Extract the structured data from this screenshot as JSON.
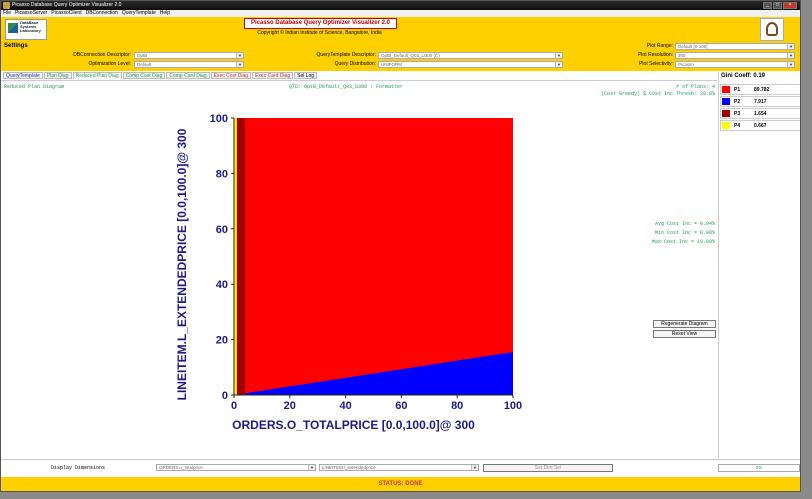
{
  "window": {
    "title": "Picasso Database Query Optimizer Visualizer 2.0"
  },
  "menu": [
    "File",
    "PicassoServer",
    "PicassoClient",
    "DBConnection",
    "QueryTemplate",
    "Help"
  ],
  "header": {
    "logo_text": "DataBase Systems Laboratory",
    "app_title": "Picasso Database Query Optimizer Visualizer 2.0",
    "copyright": "Copyright © Indian Institute of Science, Bangalore, India"
  },
  "settings": {
    "title": "Settings",
    "db_connection": {
      "label": "DBConnection Descriptor:",
      "value": "OptB"
    },
    "optimization_level": {
      "label": "Optimization Level:",
      "value": "Default"
    },
    "query_template": {
      "label": "QueryTemplate Descriptor:",
      "value": "OptB_Default_Q03_U300    (C)"
    },
    "query_distribution": {
      "label": "Query Distribution:",
      "value": "UNIFORM"
    },
    "plot_range": {
      "label": "Plot Range:",
      "value": "Default [0-100]"
    },
    "plot_resolution": {
      "label": "Plot Resolution:",
      "value": "300"
    },
    "plot_selectivity": {
      "label": "Plot Selectivity:",
      "value": "Picasso"
    }
  },
  "tabs": [
    {
      "label": "QueryTemplate",
      "color": "#1a3fb0"
    },
    {
      "label": "Plan Diag",
      "color": "#20a050"
    },
    {
      "label": "Reduced Plan Diag",
      "color": "#20a050"
    },
    {
      "label": "Comp Cost Diag",
      "color": "#20a050"
    },
    {
      "label": "Comp Card Diag",
      "color": "#20a050"
    },
    {
      "label": "Exec Cost Diag",
      "color": "#c0392b"
    },
    {
      "label": "Exec Card Diag",
      "color": "#c0392b"
    },
    {
      "label": "Sel Log",
      "color": "#000000"
    }
  ],
  "diagram": {
    "name": "Reduced Plan Diagram",
    "qtd": "QTD: OptB_Default_Q03_U300 : Formatter",
    "num_plans": "# of Plans: 4",
    "cost_threshold": "(Cost Greedy) $ Cost Inc Thresh: 20.0%",
    "avg_cost": "Avg Cost Inc = 0.04%",
    "min_cost": "Min Cost Inc = 0.00%",
    "max_cost": "Max Cost Inc = 19.09%"
  },
  "chart_data": {
    "type": "heatmap",
    "xlabel": "ORDERS.O_TOTALPRICE [0.0,100.0]@ 300",
    "ylabel": "LINEITEM.L_EXTENDEDPRICE [0.0,100.0]@ 300",
    "xlim": [
      0,
      100
    ],
    "ylim": [
      0,
      100
    ],
    "xticks": [
      0,
      20,
      40,
      60,
      80,
      100
    ],
    "yticks": [
      0,
      20,
      40,
      60,
      80,
      100
    ],
    "regions": [
      {
        "plan": "P4",
        "color": "#ffff00",
        "x": [
          0,
          1
        ]
      },
      {
        "plan": "P2",
        "color": "#0000ff",
        "boundary_x": [
          0,
          100
        ],
        "boundary_y": [
          0,
          15.5
        ]
      },
      {
        "plan": "P3",
        "color": "#a00000",
        "x": [
          1,
          4
        ]
      },
      {
        "plan": "P1",
        "color": "#ff0000"
      }
    ]
  },
  "legend": {
    "gini_label": "Gini Coeff: 0.19",
    "plans": [
      {
        "name": "P1",
        "value": "89.782",
        "color": "#ff0000"
      },
      {
        "name": "P2",
        "value": "7.917",
        "color": "#0000ff"
      },
      {
        "name": "P3",
        "value": "1.654",
        "color": "#a00000"
      },
      {
        "name": "P4",
        "value": "0.667",
        "color": "#ffff00"
      }
    ]
  },
  "buttons": {
    "regenerate": "Regenerate Diagram",
    "reset": "Reset View",
    "set_dim_sel": "Set Dim Sel"
  },
  "bottom": {
    "display_dimensions": "Display Dimensions",
    "dim1": "ORDERS.o_totalprice",
    "dim2": "LINEITEM.l_extendedprice",
    "progress": "0%"
  },
  "status": "STATUS: DONE"
}
